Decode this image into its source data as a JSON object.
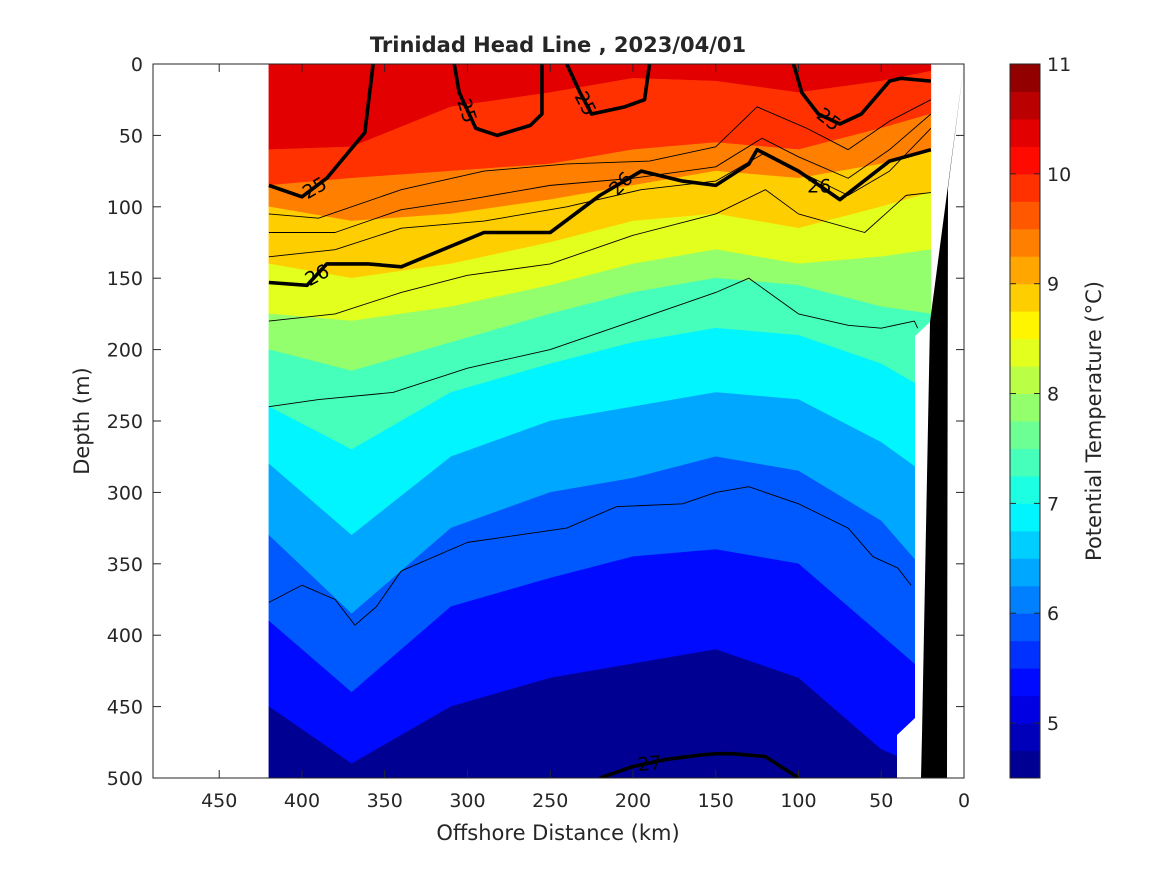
{
  "chart_data": {
    "type": "contour",
    "title": "Trinidad Head Line , 2023/04/01",
    "xlabel": "Offshore Distance (km)",
    "ylabel": "Depth (m)",
    "colorbar_label": "Potential Temperature (°C)",
    "xlim": [
      490,
      0
    ],
    "ylim": [
      0,
      500
    ],
    "xticks": [
      450,
      400,
      350,
      300,
      250,
      200,
      150,
      100,
      50,
      0
    ],
    "yticks": [
      0,
      50,
      100,
      150,
      200,
      250,
      300,
      350,
      400,
      450,
      500
    ],
    "colorbar": {
      "range": [
        4.5,
        11
      ],
      "ticks": [
        5,
        6,
        7,
        8,
        9,
        10,
        11
      ],
      "step": 0.25,
      "colormap": "jet"
    },
    "section_x_range": [
      420,
      20
    ],
    "temperature_field": {
      "x": [
        420,
        370,
        310,
        250,
        200,
        150,
        100,
        50,
        20
      ],
      "isotherms": [
        {
          "t": 10.0,
          "depth": [
            60,
            58,
            30,
            20,
            10,
            12,
            20,
            12,
            5
          ]
        },
        {
          "t": 9.5,
          "depth": [
            85,
            80,
            75,
            70,
            60,
            55,
            60,
            45,
            35
          ]
        },
        {
          "t": 9.0,
          "depth": [
            100,
            110,
            105,
            95,
            85,
            75,
            80,
            70,
            60
          ]
        },
        {
          "t": 8.5,
          "depth": [
            140,
            150,
            140,
            125,
            110,
            105,
            115,
            100,
            90
          ]
        },
        {
          "t": 8.0,
          "depth": [
            175,
            180,
            170,
            155,
            140,
            130,
            140,
            135,
            130
          ]
        },
        {
          "t": 7.5,
          "depth": [
            200,
            215,
            195,
            175,
            160,
            150,
            155,
            170,
            175
          ]
        },
        {
          "t": 7.0,
          "depth": [
            240,
            270,
            230,
            210,
            195,
            185,
            190,
            210,
            230
          ]
        },
        {
          "t": 6.5,
          "depth": [
            280,
            330,
            275,
            250,
            240,
            230,
            235,
            265,
            290
          ]
        },
        {
          "t": 6.0,
          "depth": [
            330,
            385,
            325,
            300,
            290,
            275,
            285,
            320,
            360
          ]
        },
        {
          "t": 5.5,
          "depth": [
            390,
            440,
            380,
            360,
            345,
            340,
            350,
            400,
            430
          ]
        },
        {
          "t": 5.0,
          "depth": [
            450,
            490,
            450,
            430,
            420,
            410,
            430,
            480,
            495
          ]
        }
      ]
    },
    "density_contours": [
      {
        "level": 25,
        "labeled": true,
        "x": [
          420,
          400,
          385,
          362,
          357
        ],
        "depth": [
          85,
          93,
          80,
          48,
          0
        ]
      },
      {
        "level": 25,
        "labeled": true,
        "x": [
          308,
          305,
          295,
          282,
          262,
          255,
          255
        ],
        "depth": [
          0,
          20,
          45,
          50,
          43,
          35,
          0
        ]
      },
      {
        "level": 25,
        "labeled": true,
        "x": [
          240,
          232,
          225,
          205,
          193,
          190
        ],
        "depth": [
          0,
          20,
          35,
          30,
          25,
          0
        ]
      },
      {
        "level": 25,
        "labeled": true,
        "x": [
          103,
          98,
          88,
          75,
          62,
          45,
          38,
          20
        ],
        "depth": [
          0,
          20,
          35,
          42,
          35,
          12,
          10,
          12
        ]
      },
      {
        "level": 25.25,
        "labeled": false,
        "x": [
          420,
          390,
          340,
          290,
          240,
          190,
          150,
          125,
          95,
          70,
          45,
          20
        ],
        "depth": [
          105,
          108,
          88,
          75,
          70,
          68,
          58,
          30,
          45,
          60,
          40,
          25
        ]
      },
      {
        "level": 25.5,
        "labeled": false,
        "x": [
          420,
          380,
          340,
          300,
          250,
          200,
          150,
          122,
          100,
          70,
          45,
          20
        ],
        "depth": [
          118,
          118,
          102,
          95,
          85,
          80,
          72,
          52,
          65,
          80,
          60,
          35
        ]
      },
      {
        "level": 25.75,
        "labeled": false,
        "x": [
          420,
          380,
          340,
          290,
          240,
          195,
          150,
          120,
          100,
          70,
          45,
          20
        ],
        "depth": [
          135,
          130,
          115,
          110,
          100,
          88,
          82,
          62,
          75,
          92,
          75,
          45
        ]
      },
      {
        "level": 26,
        "labeled": true,
        "x": [
          420,
          397,
          385,
          360,
          340,
          290,
          250,
          220,
          195,
          170,
          150,
          130,
          125,
          100,
          75,
          45,
          20
        ],
        "depth": [
          153,
          155,
          140,
          140,
          142,
          118,
          118,
          92,
          75,
          82,
          85,
          70,
          60,
          75,
          95,
          68,
          60
        ]
      },
      {
        "level": 26.25,
        "labeled": false,
        "x": [
          420,
          380,
          340,
          300,
          250,
          200,
          150,
          120,
          100,
          60,
          35,
          20
        ],
        "depth": [
          180,
          175,
          160,
          148,
          140,
          120,
          105,
          88,
          105,
          118,
          92,
          90
        ]
      },
      {
        "level": 26.5,
        "labeled": false,
        "x": [
          420,
          390,
          345,
          300,
          250,
          200,
          170,
          150,
          130,
          100,
          70,
          50,
          30,
          28
        ],
        "depth": [
          240,
          235,
          230,
          213,
          200,
          180,
          168,
          160,
          150,
          175,
          183,
          185,
          180,
          185
        ]
      },
      {
        "level": 26.75,
        "labeled": false,
        "x": [
          420,
          400,
          380,
          368,
          355,
          340,
          300,
          240,
          210,
          170,
          150,
          130,
          100,
          70,
          55,
          40,
          32
        ],
        "depth": [
          377,
          365,
          375,
          393,
          380,
          355,
          335,
          325,
          310,
          308,
          300,
          296,
          308,
          325,
          345,
          353,
          365
        ]
      },
      {
        "level": 27,
        "labeled": true,
        "x": [
          220,
          200,
          180,
          160,
          150,
          140,
          120,
          100
        ],
        "depth": [
          500,
          492,
          487,
          484,
          483,
          483,
          485,
          500
        ]
      }
    ]
  }
}
